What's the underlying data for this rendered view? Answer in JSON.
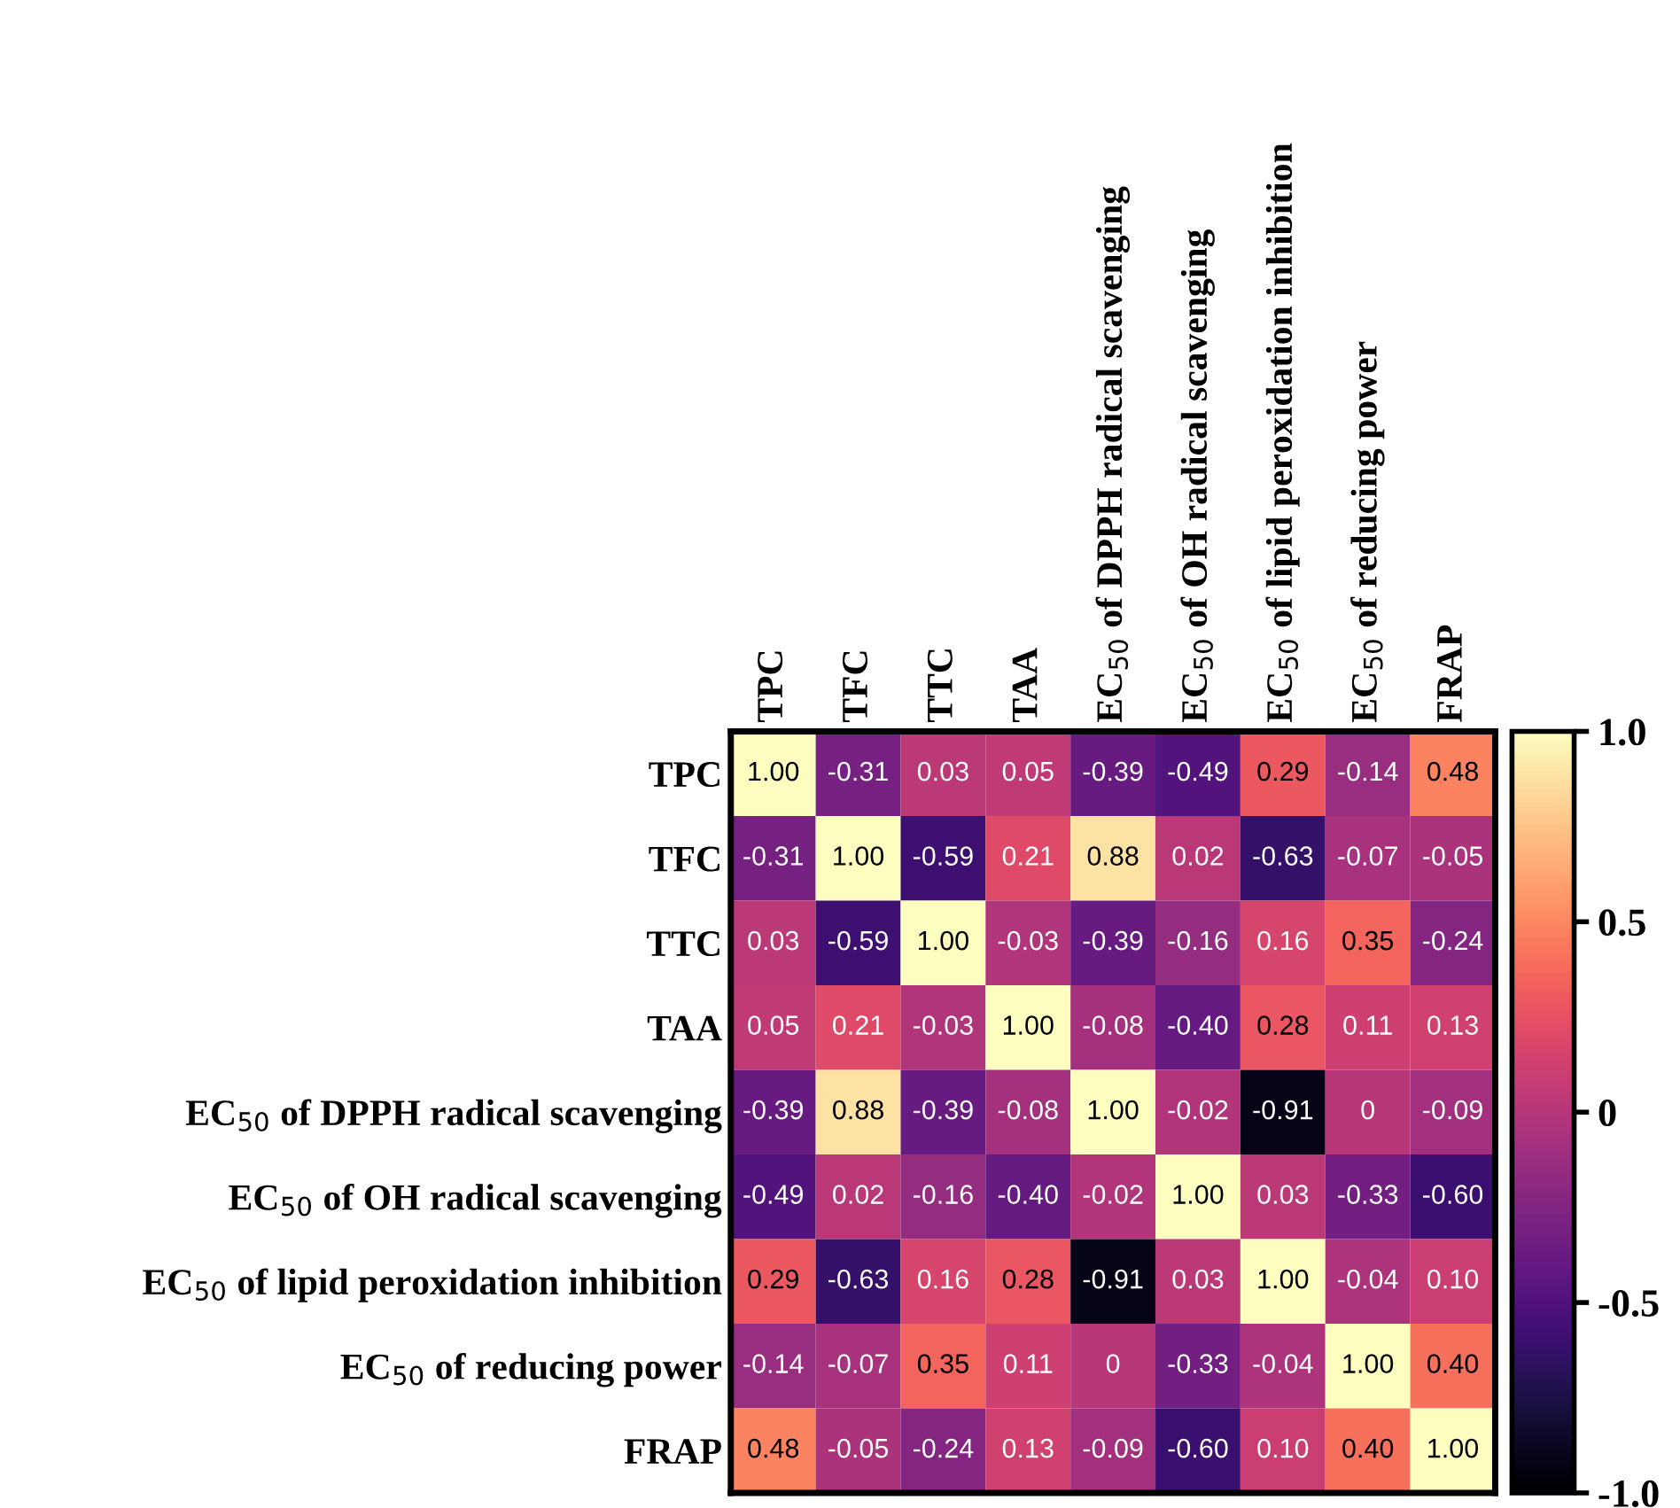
{
  "chart_data": {
    "type": "heatmap",
    "categories": [
      "TPC",
      "TFC",
      "TTC",
      "TAA",
      "EC$_{50}$ of DPPH radical scavenging",
      "EC$_{50}$ of OH radical scavenging",
      "EC$_{50}$ of lipid peroxidation inhibition",
      "EC$_{50}$ of reducing power",
      "FRAP"
    ],
    "y_categories": [
      "TPC",
      "TFC",
      "TTC",
      "TAA",
      "EC$_{50}$ of DPPH radical scavenging",
      "EC$_{50}$ of OH radical scavenging",
      "EC$_{50}$ of lipid peroxidation inhibition",
      "EC$_{50}$ of reducing power",
      "FRAP"
    ],
    "cells": [
      [
        1.0,
        -0.31,
        0.03,
        0.05,
        -0.39,
        -0.49,
        0.29,
        -0.14,
        0.48
      ],
      [
        -0.31,
        1.0,
        -0.59,
        0.21,
        0.88,
        0.02,
        -0.63,
        -0.07,
        -0.05
      ],
      [
        0.03,
        -0.59,
        1.0,
        -0.03,
        -0.39,
        -0.16,
        0.16,
        0.35,
        -0.24
      ],
      [
        0.05,
        0.21,
        -0.03,
        1.0,
        -0.08,
        -0.4,
        0.28,
        0.11,
        0.13
      ],
      [
        -0.39,
        0.88,
        -0.39,
        -0.08,
        1.0,
        -0.02,
        -0.91,
        0,
        -0.09
      ],
      [
        -0.49,
        0.02,
        -0.16,
        -0.4,
        -0.02,
        1.0,
        0.03,
        -0.33,
        -0.6
      ],
      [
        0.29,
        -0.63,
        0.16,
        0.28,
        -0.91,
        0.03,
        1.0,
        -0.04,
        0.1
      ],
      [
        -0.14,
        -0.07,
        0.35,
        0.11,
        0,
        -0.33,
        -0.04,
        1.0,
        0.4
      ],
      [
        0.48,
        -0.05,
        -0.24,
        0.13,
        -0.09,
        -0.6,
        0.1,
        0.4,
        1.0
      ]
    ],
    "cell_labels": [
      [
        "1.00",
        "-0.31",
        "0.03",
        "0.05",
        "-0.39",
        "-0.49",
        "0.29",
        "-0.14",
        "0.48"
      ],
      [
        "-0.31",
        "1.00",
        "-0.59",
        "0.21",
        "0.88",
        "0.02",
        "-0.63",
        "-0.07",
        "-0.05"
      ],
      [
        "0.03",
        "-0.59",
        "1.00",
        "-0.03",
        "-0.39",
        "-0.16",
        "0.16",
        "0.35",
        "-0.24"
      ],
      [
        "0.05",
        "0.21",
        "-0.03",
        "1.00",
        "-0.08",
        "-0.40",
        "0.28",
        "0.11",
        "0.13"
      ],
      [
        "-0.39",
        "0.88",
        "-0.39",
        "-0.08",
        "1.00",
        "-0.02",
        "-0.91",
        "0",
        "-0.09"
      ],
      [
        "-0.49",
        "0.02",
        "-0.16",
        "-0.40",
        "-0.02",
        "1.00",
        "0.03",
        "-0.33",
        "-0.60"
      ],
      [
        "0.29",
        "-0.63",
        "0.16",
        "0.28",
        "-0.91",
        "0.03",
        "1.00",
        "-0.04",
        "0.10"
      ],
      [
        "-0.14",
        "-0.07",
        "0.35",
        "0.11",
        "0",
        "-0.33",
        "-0.04",
        "1.00",
        "0.40"
      ],
      [
        "0.48",
        "-0.05",
        "-0.24",
        "0.13",
        "-0.09",
        "-0.60",
        "0.10",
        "0.40",
        "1.00"
      ]
    ],
    "clim": [
      -1,
      1
    ],
    "cticks": [
      {
        "value": -1,
        "label": "-1.0"
      },
      {
        "value": -0.5,
        "label": "-0.5"
      },
      0,
      {
        "value": 0.5,
        "label": "0.5"
      },
      {
        "value": 1,
        "label": "1.0"
      }
    ]
  }
}
